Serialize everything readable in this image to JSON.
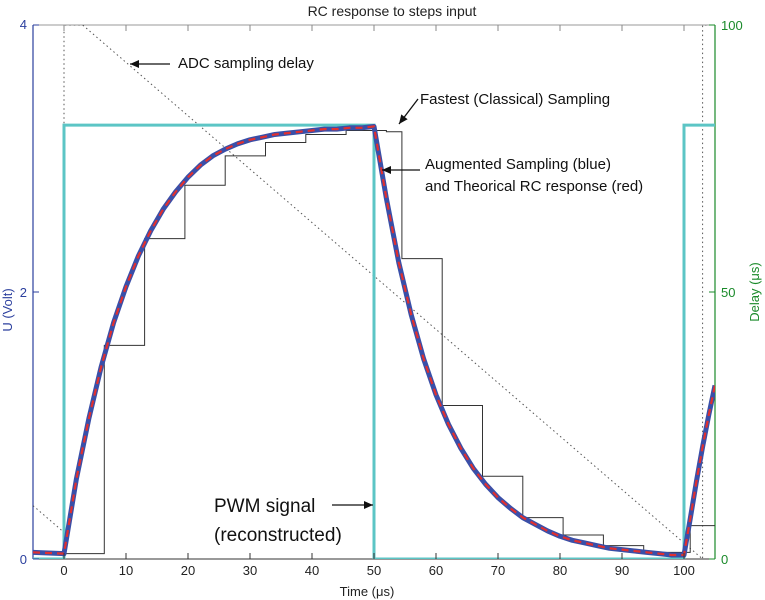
{
  "chart_data": {
    "type": "line",
    "title": "RC response to steps input",
    "xlabel": "Time (μs)",
    "ylabel_left": "U (Volt)",
    "ylabel_right": "Delay (μs)",
    "xlim": [
      -5,
      105
    ],
    "ylim_left": [
      0,
      4
    ],
    "ylim_right": [
      0,
      100
    ],
    "grid": false,
    "x_ticks": [
      0,
      10,
      20,
      30,
      40,
      50,
      60,
      70,
      80,
      90,
      100
    ],
    "x_tick_labels": [
      "0",
      "10",
      "20",
      "30",
      "40",
      "50",
      "60",
      "70",
      "80",
      "90",
      "100"
    ],
    "y_left_ticks": [
      0,
      2,
      4
    ],
    "y_left_tick_labels": [
      "0",
      "2",
      "4"
    ],
    "y_right_ticks": [
      0,
      50,
      100
    ],
    "y_right_tick_labels": [
      "0",
      "50",
      "100"
    ],
    "colors": {
      "pwm": "#5cc5c5",
      "blue_curve": "#3a4fa8",
      "red_curve": "#e03030",
      "samples": "#333333",
      "delay": "#555555",
      "left_axis": "#2b3f9e",
      "right_axis": "#1a8a2a"
    },
    "series": [
      {
        "key": "pwm",
        "points": [
          [
            -5,
            0
          ],
          [
            0,
            0
          ],
          [
            0,
            3.25
          ],
          [
            50,
            3.25
          ],
          [
            50,
            0
          ],
          [
            100,
            0
          ],
          [
            100,
            3.25
          ],
          [
            105,
            3.25
          ]
        ]
      },
      {
        "key": "rc_response",
        "points": [
          [
            -5,
            0.05
          ],
          [
            0,
            0.04
          ],
          [
            2,
            0.6
          ],
          [
            4,
            1.05
          ],
          [
            6,
            1.44
          ],
          [
            8,
            1.77
          ],
          [
            10,
            2.04
          ],
          [
            12,
            2.27
          ],
          [
            14,
            2.46
          ],
          [
            16,
            2.62
          ],
          [
            18,
            2.75
          ],
          [
            20,
            2.86
          ],
          [
            22,
            2.95
          ],
          [
            24,
            3.02
          ],
          [
            26,
            3.07
          ],
          [
            28,
            3.11
          ],
          [
            30,
            3.14
          ],
          [
            32,
            3.16
          ],
          [
            34,
            3.18
          ],
          [
            36,
            3.19
          ],
          [
            38,
            3.2
          ],
          [
            40,
            3.21
          ],
          [
            42,
            3.22
          ],
          [
            44,
            3.22
          ],
          [
            46,
            3.23
          ],
          [
            48,
            3.23
          ],
          [
            50,
            3.24
          ],
          [
            52,
            2.7
          ],
          [
            54,
            2.22
          ],
          [
            56,
            1.83
          ],
          [
            58,
            1.5
          ],
          [
            60,
            1.23
          ],
          [
            62,
            1.01
          ],
          [
            64,
            0.83
          ],
          [
            66,
            0.68
          ],
          [
            68,
            0.56
          ],
          [
            70,
            0.46
          ],
          [
            72,
            0.38
          ],
          [
            74,
            0.31
          ],
          [
            76,
            0.26
          ],
          [
            78,
            0.21
          ],
          [
            80,
            0.17
          ],
          [
            82,
            0.14
          ],
          [
            84,
            0.12
          ],
          [
            86,
            0.1
          ],
          [
            88,
            0.08
          ],
          [
            90,
            0.07
          ],
          [
            92,
            0.06
          ],
          [
            94,
            0.05
          ],
          [
            96,
            0.04
          ],
          [
            98,
            0.03
          ],
          [
            100,
            0.03
          ],
          [
            101,
            0.3
          ],
          [
            102,
            0.58
          ],
          [
            103,
            0.84
          ],
          [
            104,
            1.08
          ],
          [
            105,
            1.3
          ]
        ]
      },
      {
        "key": "classical_sampling",
        "points": [
          [
            -5,
            0.05
          ],
          [
            0,
            0.04
          ],
          [
            6.5,
            0.04
          ],
          [
            6.5,
            1.6
          ],
          [
            13,
            1.6
          ],
          [
            13,
            2.4
          ],
          [
            19.5,
            2.4
          ],
          [
            19.5,
            2.8
          ],
          [
            26,
            2.8
          ],
          [
            26,
            3.02
          ],
          [
            32.5,
            3.02
          ],
          [
            32.5,
            3.12
          ],
          [
            39,
            3.12
          ],
          [
            39,
            3.18
          ],
          [
            45.5,
            3.18
          ],
          [
            45.5,
            3.21
          ],
          [
            52,
            3.21
          ],
          [
            52,
            3.2
          ],
          [
            54.5,
            3.2
          ],
          [
            54.5,
            2.25
          ],
          [
            61,
            2.25
          ],
          [
            61,
            1.15
          ],
          [
            67.5,
            1.15
          ],
          [
            67.5,
            0.62
          ],
          [
            74,
            0.62
          ],
          [
            74,
            0.31
          ],
          [
            80.5,
            0.31
          ],
          [
            80.5,
            0.18
          ],
          [
            87,
            0.18
          ],
          [
            87,
            0.1
          ],
          [
            93.5,
            0.1
          ],
          [
            93.5,
            0.05
          ],
          [
            100,
            0.05
          ],
          [
            100,
            0.05
          ],
          [
            101,
            0.05
          ],
          [
            101,
            0.25
          ],
          [
            105,
            0.25
          ]
        ]
      },
      {
        "key": "adc_delay",
        "points": [
          [
            -5,
            10
          ],
          [
            0,
            5
          ],
          [
            0,
            100
          ],
          [
            3,
            100
          ],
          [
            100,
            3
          ],
          [
            103,
            0
          ],
          [
            103,
            100
          ],
          [
            105,
            100
          ]
        ]
      }
    ],
    "annotations": [
      {
        "key": "adc",
        "text": "ADC  sampling delay"
      },
      {
        "key": "fastest",
        "text": "Fastest (Classical) Sampling"
      },
      {
        "key": "augmented_1",
        "text": "Augmented Sampling (blue)"
      },
      {
        "key": "augmented_2",
        "text": "and Theorical RC response (red)"
      },
      {
        "key": "pwm_1",
        "text": "PWM signal"
      },
      {
        "key": "pwm_2",
        "text": "(reconstructed)"
      }
    ]
  }
}
